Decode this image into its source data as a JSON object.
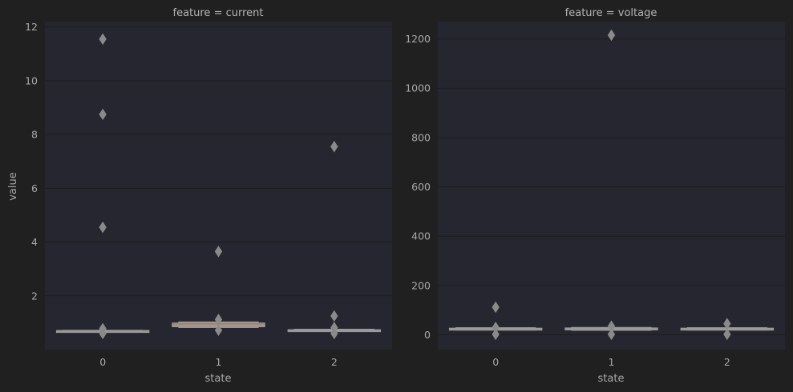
{
  "chart_data": [
    {
      "type": "boxenplot",
      "title": "feature = current",
      "xlabel": "state",
      "ylabel": "value",
      "categories": [
        "0",
        "1",
        "2"
      ],
      "ylim": [
        0.0,
        12.2
      ],
      "yticks": [
        2,
        4,
        6,
        8,
        10,
        12
      ],
      "grid": true,
      "boxes": [
        {
          "category": "0",
          "median": 0.69,
          "levels": [
            [
              0.67,
              0.71
            ],
            [
              0.66,
              0.72
            ]
          ],
          "fill": "#8c8c8c"
        },
        {
          "category": "1",
          "median": 0.9,
          "levels": [
            [
              0.85,
              0.99
            ],
            [
              0.82,
              1.03
            ]
          ],
          "fill": "#b07b55"
        },
        {
          "category": "2",
          "median": 0.72,
          "levels": [
            [
              0.69,
              0.74
            ],
            [
              0.67,
              0.76
            ]
          ],
          "fill": "#8c8c8c"
        }
      ],
      "outliers": [
        {
          "category": "0",
          "values": [
            11.55,
            8.75,
            4.55,
            0.78,
            0.6
          ]
        },
        {
          "category": "1",
          "values": [
            3.65,
            1.12,
            0.72
          ]
        },
        {
          "category": "2",
          "values": [
            7.55,
            1.25,
            0.82,
            0.6
          ]
        }
      ]
    },
    {
      "type": "boxenplot",
      "title": "feature = voltage",
      "xlabel": "state",
      "ylabel": "",
      "categories": [
        "0",
        "1",
        "2"
      ],
      "ylim": [
        -60,
        1270
      ],
      "yticks": [
        0,
        200,
        400,
        600,
        800,
        1000,
        1200
      ],
      "grid": true,
      "boxes": [
        {
          "category": "0",
          "median": 24,
          "levels": [
            [
              21,
              27
            ],
            [
              19,
              29
            ]
          ],
          "fill": "#8c8c8c"
        },
        {
          "category": "1",
          "median": 24,
          "levels": [
            [
              20,
              28
            ],
            [
              18,
              30
            ]
          ],
          "fill": "#8c8c8c"
        },
        {
          "category": "2",
          "median": 24,
          "levels": [
            [
              21,
              27
            ],
            [
              19,
              29
            ]
          ],
          "fill": "#8c8c8c"
        }
      ],
      "outliers": [
        {
          "category": "0",
          "values": [
            112,
            30,
            2
          ]
        },
        {
          "category": "1",
          "values": [
            1215,
            35,
            2
          ]
        },
        {
          "category": "2",
          "values": [
            45,
            2
          ]
        }
      ]
    }
  ]
}
